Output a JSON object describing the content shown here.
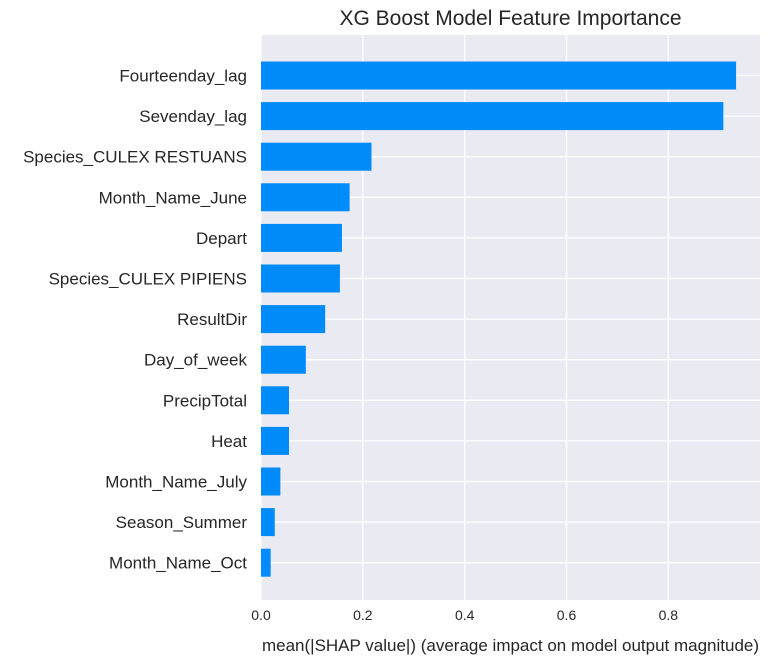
{
  "chart_data": {
    "type": "bar",
    "orientation": "horizontal",
    "title": "XG Boost Model Feature Importance",
    "xlabel": "mean(|SHAP value|) (average impact on model output magnitude)",
    "ylabel": "",
    "categories": [
      "Fourteenday_lag",
      "Sevenday_lag",
      "Species_CULEX RESTUANS",
      "Month_Name_June",
      "Depart",
      "Species_CULEX PIPIENS",
      "ResultDir",
      "Day_of_week",
      "PrecipTotal",
      "Heat",
      "Month_Name_July",
      "Season_Summer",
      "Month_Name_Oct"
    ],
    "values": [
      0.933,
      0.908,
      0.217,
      0.174,
      0.159,
      0.155,
      0.126,
      0.088,
      0.055,
      0.055,
      0.038,
      0.027,
      0.019
    ],
    "xlim": [
      0,
      0.98
    ],
    "xticks": [
      "0.0",
      "0.2",
      "0.4",
      "0.6",
      "0.8"
    ],
    "xtick_values": [
      0,
      0.2,
      0.4,
      0.6,
      0.8
    ],
    "grid": true,
    "colors": {
      "bar": "#008bfb",
      "background": "#eaeaf2",
      "grid": "#ffffff"
    }
  }
}
